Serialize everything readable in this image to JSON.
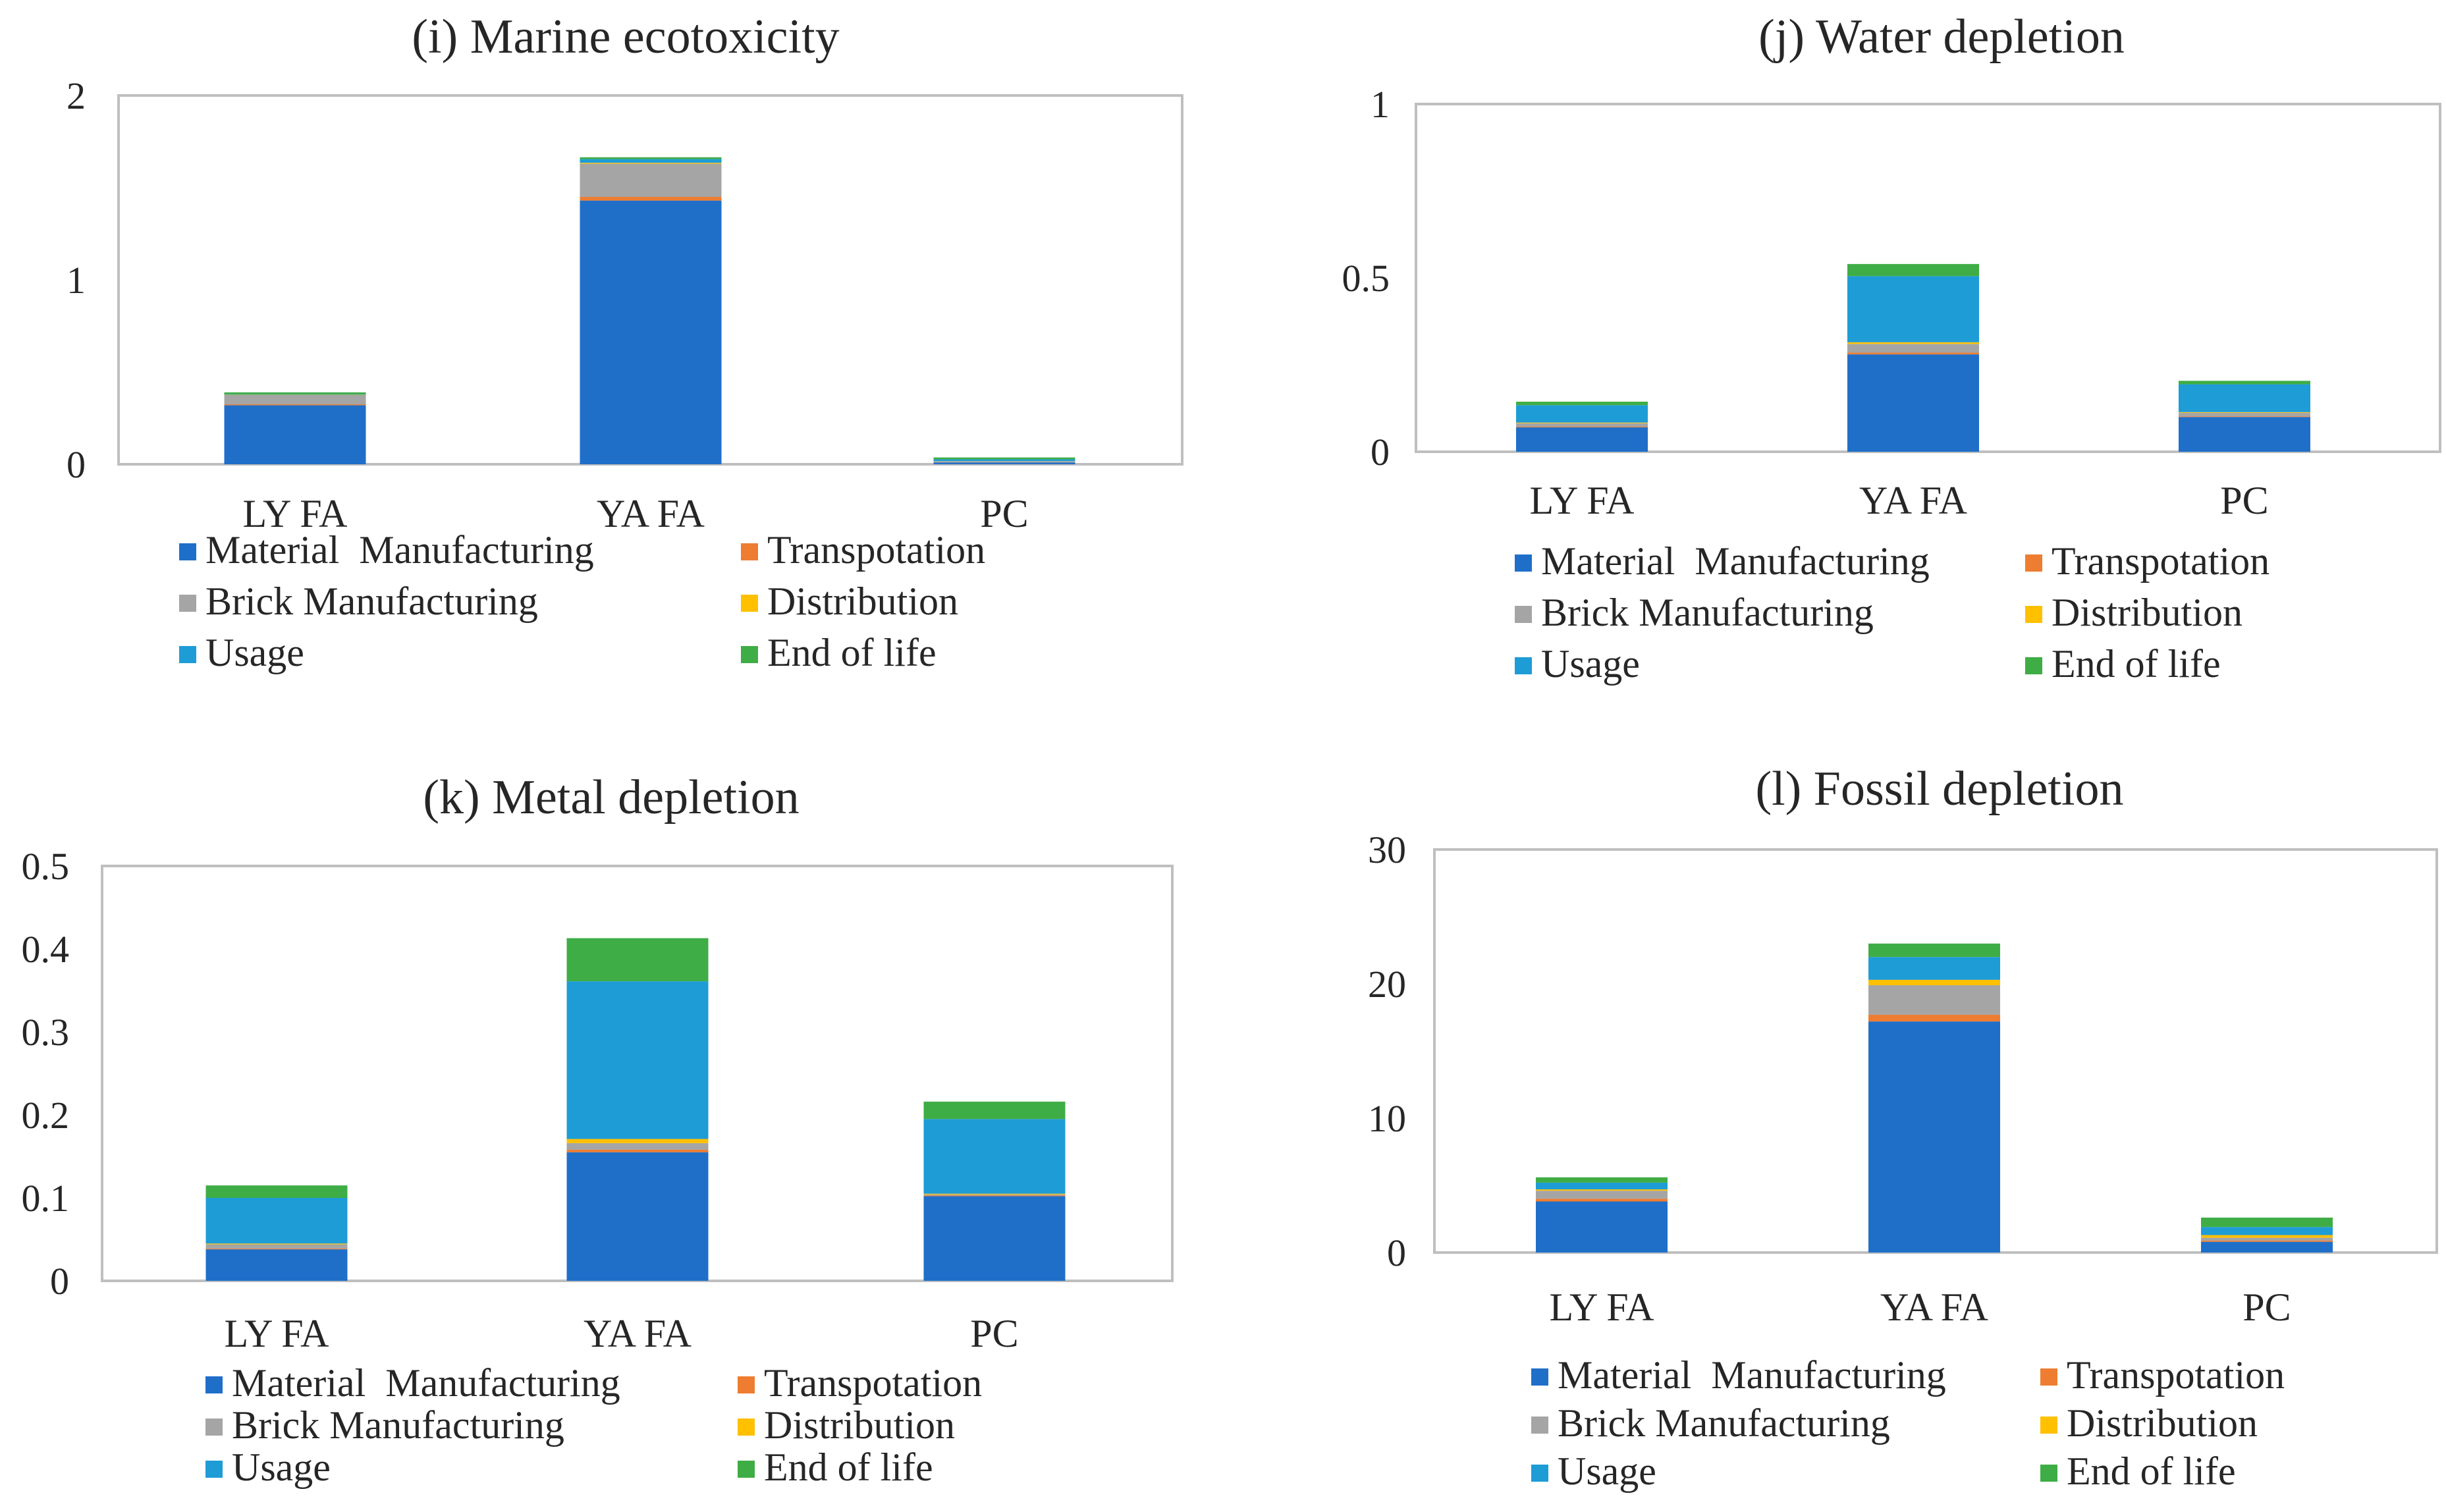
{
  "chart_data": [
    {
      "type": "bar",
      "stacked": true,
      "title": "(i) Marine ecotoxicity",
      "categories": [
        "LY FA",
        "YA FA",
        "PC"
      ],
      "ylim": [
        0,
        2
      ],
      "yticks": [
        "0",
        "1",
        "2"
      ],
      "ytick_values": [
        0,
        1,
        2
      ],
      "series": [
        {
          "name": "Material  Manufacturing",
          "values": [
            0.32,
            1.43,
            0.01
          ]
        },
        {
          "name": "Transpotation",
          "values": [
            0.005,
            0.02,
            0.001
          ]
        },
        {
          "name": "Brick Manufacturing",
          "values": [
            0.05,
            0.18,
            0.005
          ]
        },
        {
          "name": "Distribution",
          "values": [
            0.002,
            0.005,
            0.001
          ]
        },
        {
          "name": "Usage",
          "values": [
            0.003,
            0.02,
            0.01
          ]
        },
        {
          "name": "End of life",
          "values": [
            0.01,
            0.01,
            0.01
          ]
        }
      ]
    },
    {
      "type": "bar",
      "stacked": true,
      "title": "(j) Water depletion",
      "categories": [
        "LY FA",
        "YA FA",
        "PC"
      ],
      "ylim": [
        0,
        1
      ],
      "yticks": [
        "0",
        "0.5",
        "1"
      ],
      "ytick_values": [
        0,
        0.5,
        1
      ],
      "series": [
        {
          "name": "Material  Manufacturing",
          "values": [
            0.07,
            0.28,
            0.1
          ]
        },
        {
          "name": "Transpotation",
          "values": [
            0.002,
            0.005,
            0.002
          ]
        },
        {
          "name": "Brick Manufacturing",
          "values": [
            0.01,
            0.025,
            0.01
          ]
        },
        {
          "name": "Distribution",
          "values": [
            0.002,
            0.005,
            0.002
          ]
        },
        {
          "name": "Usage",
          "values": [
            0.05,
            0.19,
            0.08
          ]
        },
        {
          "name": "End of life",
          "values": [
            0.01,
            0.035,
            0.01
          ]
        }
      ]
    },
    {
      "type": "bar",
      "stacked": true,
      "title": "(k) Metal depletion",
      "categories": [
        "LY FA",
        "YA FA",
        "PC"
      ],
      "ylim": [
        0,
        0.5
      ],
      "yticks": [
        "0",
        "0.1",
        "0.2",
        "0.3",
        "0.4",
        "0.5"
      ],
      "ytick_values": [
        0,
        0.1,
        0.2,
        0.3,
        0.4,
        0.5
      ],
      "series": [
        {
          "name": "Material  Manufacturing",
          "values": [
            0.038,
            0.155,
            0.102
          ]
        },
        {
          "name": "Transpotation",
          "values": [
            0.001,
            0.003,
            0.001
          ]
        },
        {
          "name": "Brick Manufacturing",
          "values": [
            0.005,
            0.008,
            0.001
          ]
        },
        {
          "name": "Distribution",
          "values": [
            0.001,
            0.005,
            0.001
          ]
        },
        {
          "name": "Usage",
          "values": [
            0.055,
            0.19,
            0.09
          ]
        },
        {
          "name": "End of life",
          "values": [
            0.015,
            0.052,
            0.021
          ]
        }
      ]
    },
    {
      "type": "bar",
      "stacked": true,
      "title": "(l) Fossil depletion",
      "categories": [
        "LY FA",
        "YA FA",
        "PC"
      ],
      "ylim": [
        0,
        30
      ],
      "yticks": [
        "0",
        "10",
        "20",
        "30"
      ],
      "ytick_values": [
        0,
        10,
        20,
        30
      ],
      "series": [
        {
          "name": "Material  Manufacturing",
          "values": [
            3.8,
            17.2,
            0.8
          ]
        },
        {
          "name": "Transpotation",
          "values": [
            0.2,
            0.5,
            0.1
          ]
        },
        {
          "name": "Brick Manufacturing",
          "values": [
            0.6,
            2.2,
            0.2
          ]
        },
        {
          "name": "Distribution",
          "values": [
            0.1,
            0.4,
            0.2
          ]
        },
        {
          "name": "Usage",
          "values": [
            0.5,
            1.7,
            0.6
          ]
        },
        {
          "name": "End of life",
          "values": [
            0.4,
            1.0,
            0.7
          ]
        }
      ]
    }
  ],
  "legend": {
    "entries": [
      "Material  Manufacturing",
      "Transpotation",
      "Brick Manufacturing",
      "Distribution",
      "Usage",
      "End of life"
    ]
  },
  "colors": {
    "Material  Manufacturing": "#1f6fc9",
    "Transpotation": "#ee7d31",
    "Brick Manufacturing": "#a5a5a5",
    "Distribution": "#ffc000",
    "Usage": "#1e9cd6",
    "End of life": "#3fad46",
    "axis": "#bfbfbf",
    "text": "#262626"
  }
}
